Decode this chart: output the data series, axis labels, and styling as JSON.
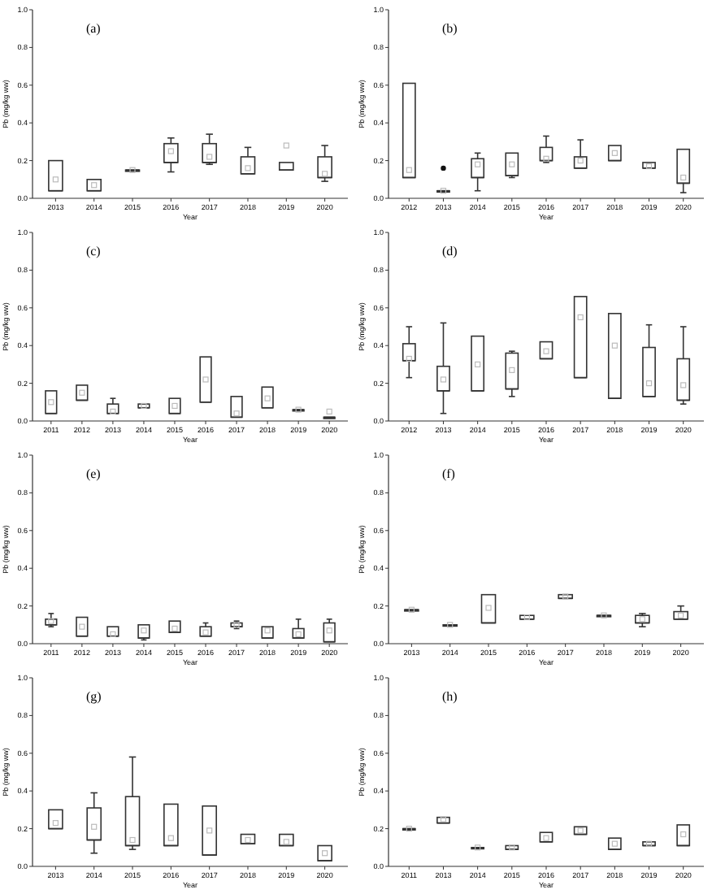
{
  "chart_data": [
    {
      "type": "box",
      "title": "(a)",
      "xlabel": "Year",
      "ylabel": "Pb (mg/kg ww)",
      "color": "#333333",
      "ylim": [
        0,
        1
      ],
      "yticks": [
        {
          "value": 0,
          "label": "0.0"
        },
        {
          "value": 0.2,
          "label": "0.2"
        },
        {
          "value": 0.4,
          "label": "0.4"
        },
        {
          "value": 0.6,
          "label": "0.6"
        },
        {
          "value": 0.8,
          "label": "0.8"
        },
        {
          "value": 1,
          "label": "1.0"
        }
      ],
      "categories": [
        "2013",
        "2014",
        "2015",
        "2016",
        "2017",
        "2018",
        "2019",
        "2020"
      ],
      "boxes": [
        {
          "low": 0.04,
          "q1": 0.04,
          "median": 0.04,
          "q3": 0.2,
          "high": 0.2,
          "mean": 0.1
        },
        {
          "low": 0.04,
          "q1": 0.04,
          "median": 0.04,
          "q3": 0.1,
          "high": 0.1,
          "mean": 0.07
        },
        {
          "low": 0.15,
          "q1": 0.15,
          "median": 0.15,
          "q3": 0.15,
          "high": 0.15,
          "mean": 0.15
        },
        {
          "low": 0.14,
          "q1": 0.19,
          "median": 0.19,
          "q3": 0.29,
          "high": 0.32,
          "mean": 0.25
        },
        {
          "low": 0.18,
          "q1": 0.19,
          "median": 0.19,
          "q3": 0.29,
          "high": 0.34,
          "mean": 0.22
        },
        {
          "low": 0.13,
          "q1": 0.13,
          "median": 0.13,
          "q3": 0.22,
          "high": 0.27,
          "mean": 0.16
        },
        {
          "low": 0.15,
          "q1": 0.15,
          "median": 0.15,
          "q3": 0.19,
          "high": 0.19,
          "mean": 0.28
        },
        {
          "low": 0.09,
          "q1": 0.11,
          "median": 0.11,
          "q3": 0.22,
          "high": 0.28,
          "mean": 0.13
        }
      ]
    },
    {
      "type": "box",
      "title": "(b)",
      "xlabel": "Year",
      "ylabel": "Pb (mg/kg ww)",
      "color": "#333333",
      "ylim": [
        0,
        1
      ],
      "yticks": [
        {
          "value": 0,
          "label": "0.0"
        },
        {
          "value": 0.2,
          "label": "0.2"
        },
        {
          "value": 0.4,
          "label": "0.4"
        },
        {
          "value": 0.6,
          "label": "0.6"
        },
        {
          "value": 0.8,
          "label": "0.8"
        },
        {
          "value": 1,
          "label": "1.0"
        }
      ],
      "categories": [
        "2012",
        "2013",
        "2014",
        "2015",
        "2016",
        "2017",
        "2018",
        "2019",
        "2020"
      ],
      "boxes": [
        {
          "low": 0.11,
          "q1": 0.11,
          "median": 0.11,
          "q3": 0.61,
          "high": 0.61,
          "mean": 0.15
        },
        {
          "low": 0.04,
          "q1": 0.04,
          "median": 0.04,
          "q3": 0.04,
          "high": 0.04,
          "mean": 0.04,
          "outliers": [
            0.16
          ]
        },
        {
          "low": 0.04,
          "q1": 0.11,
          "median": 0.11,
          "q3": 0.21,
          "high": 0.24,
          "mean": 0.18
        },
        {
          "low": 0.11,
          "q1": 0.12,
          "median": 0.12,
          "q3": 0.24,
          "high": 0.24,
          "mean": 0.18
        },
        {
          "low": 0.19,
          "q1": 0.2,
          "median": 0.2,
          "q3": 0.27,
          "high": 0.33,
          "mean": 0.21
        },
        {
          "low": 0.16,
          "q1": 0.16,
          "median": 0.16,
          "q3": 0.22,
          "high": 0.31,
          "mean": 0.2
        },
        {
          "low": 0.2,
          "q1": 0.2,
          "median": 0.2,
          "q3": 0.28,
          "high": 0.28,
          "mean": 0.24
        },
        {
          "low": 0.16,
          "q1": 0.16,
          "median": 0.16,
          "q3": 0.19,
          "high": 0.19,
          "mean": 0.17
        },
        {
          "low": 0.03,
          "q1": 0.08,
          "median": 0.08,
          "q3": 0.26,
          "high": 0.26,
          "mean": 0.11
        }
      ]
    },
    {
      "type": "box",
      "title": "(c)",
      "xlabel": "Year",
      "ylabel": "Pb (mg/kg ww)",
      "color": "#333333",
      "ylim": [
        0,
        1
      ],
      "yticks": [
        {
          "value": 0,
          "label": "0.0"
        },
        {
          "value": 0.2,
          "label": "0.2"
        },
        {
          "value": 0.4,
          "label": "0.4"
        },
        {
          "value": 0.6,
          "label": "0.6"
        },
        {
          "value": 0.8,
          "label": "0.8"
        },
        {
          "value": 1,
          "label": "1.0"
        }
      ],
      "categories": [
        "2011",
        "2012",
        "2013",
        "2014",
        "2015",
        "2016",
        "2017",
        "2018",
        "2019",
        "2020"
      ],
      "boxes": [
        {
          "low": 0.04,
          "q1": 0.04,
          "median": 0.04,
          "q3": 0.16,
          "high": 0.16,
          "mean": 0.1
        },
        {
          "low": 0.11,
          "q1": 0.11,
          "median": 0.11,
          "q3": 0.19,
          "high": 0.19,
          "mean": 0.15
        },
        {
          "low": 0.04,
          "q1": 0.04,
          "median": 0.04,
          "q3": 0.09,
          "high": 0.12,
          "mean": 0.05
        },
        {
          "low": 0.07,
          "q1": 0.07,
          "median": 0.07,
          "q3": 0.09,
          "high": 0.09,
          "mean": 0.08
        },
        {
          "low": 0.04,
          "q1": 0.04,
          "median": 0.04,
          "q3": 0.12,
          "high": 0.12,
          "mean": 0.08
        },
        {
          "low": 0.1,
          "q1": 0.1,
          "median": 0.1,
          "q3": 0.34,
          "high": 0.34,
          "mean": 0.22
        },
        {
          "low": 0.02,
          "q1": 0.02,
          "median": 0.02,
          "q3": 0.13,
          "high": 0.13,
          "mean": 0.04
        },
        {
          "low": 0.07,
          "q1": 0.07,
          "median": 0.07,
          "q3": 0.18,
          "high": 0.18,
          "mean": 0.12
        },
        {
          "low": 0.06,
          "q1": 0.06,
          "median": 0.06,
          "q3": 0.06,
          "high": 0.06,
          "mean": 0.06
        },
        {
          "low": 0.02,
          "q1": 0.02,
          "median": 0.02,
          "q3": 0.02,
          "high": 0.02,
          "mean": 0.05
        }
      ]
    },
    {
      "type": "box",
      "title": "(d)",
      "xlabel": "Year",
      "ylabel": "Pb (mg/kg ww)",
      "color": "#333333",
      "ylim": [
        0,
        1
      ],
      "yticks": [
        {
          "value": 0,
          "label": "0.0"
        },
        {
          "value": 0.2,
          "label": "0.2"
        },
        {
          "value": 0.4,
          "label": "0.4"
        },
        {
          "value": 0.6,
          "label": "0.6"
        },
        {
          "value": 0.8,
          "label": "0.8"
        },
        {
          "value": 1,
          "label": "1.0"
        }
      ],
      "categories": [
        "2012",
        "2013",
        "2014",
        "2015",
        "2016",
        "2017",
        "2018",
        "2019",
        "2020"
      ],
      "boxes": [
        {
          "low": 0.23,
          "q1": 0.32,
          "median": 0.32,
          "q3": 0.41,
          "high": 0.5,
          "mean": 0.33
        },
        {
          "low": 0.04,
          "q1": 0.16,
          "median": 0.16,
          "q3": 0.29,
          "high": 0.52,
          "mean": 0.22
        },
        {
          "low": 0.16,
          "q1": 0.16,
          "median": 0.16,
          "q3": 0.45,
          "high": 0.45,
          "mean": 0.3
        },
        {
          "low": 0.13,
          "q1": 0.17,
          "median": 0.17,
          "q3": 0.36,
          "high": 0.37,
          "mean": 0.27
        },
        {
          "low": 0.33,
          "q1": 0.33,
          "median": 0.33,
          "q3": 0.42,
          "high": 0.42,
          "mean": 0.37
        },
        {
          "low": 0.23,
          "q1": 0.23,
          "median": 0.23,
          "q3": 0.66,
          "high": 0.66,
          "mean": 0.55
        },
        {
          "low": 0.12,
          "q1": 0.12,
          "median": 0.12,
          "q3": 0.57,
          "high": 0.57,
          "mean": 0.4
        },
        {
          "low": 0.13,
          "q1": 0.13,
          "median": 0.13,
          "q3": 0.39,
          "high": 0.51,
          "mean": 0.2
        },
        {
          "low": 0.09,
          "q1": 0.11,
          "median": 0.11,
          "q3": 0.33,
          "high": 0.5,
          "mean": 0.19
        }
      ]
    },
    {
      "type": "box",
      "title": "(e)",
      "xlabel": "Year",
      "ylabel": "Pb (mg/kg ww)",
      "color": "#333333",
      "ylim": [
        0,
        1
      ],
      "yticks": [
        {
          "value": 0,
          "label": "0.0"
        },
        {
          "value": 0.2,
          "label": "0.2"
        },
        {
          "value": 0.4,
          "label": "0.4"
        },
        {
          "value": 0.6,
          "label": "0.6"
        },
        {
          "value": 0.8,
          "label": "0.8"
        },
        {
          "value": 1,
          "label": "1.0"
        }
      ],
      "categories": [
        "2011",
        "2012",
        "2013",
        "2014",
        "2015",
        "2016",
        "2017",
        "2018",
        "2019",
        "2020"
      ],
      "boxes": [
        {
          "low": 0.09,
          "q1": 0.1,
          "median": 0.1,
          "q3": 0.13,
          "high": 0.16,
          "mean": 0.12
        },
        {
          "low": 0.04,
          "q1": 0.04,
          "median": 0.04,
          "q3": 0.14,
          "high": 0.14,
          "mean": 0.09
        },
        {
          "low": 0.04,
          "q1": 0.04,
          "median": 0.04,
          "q3": 0.09,
          "high": 0.09,
          "mean": 0.05
        },
        {
          "low": 0.02,
          "q1": 0.03,
          "median": 0.03,
          "q3": 0.1,
          "high": 0.1,
          "mean": 0.07
        },
        {
          "low": 0.06,
          "q1": 0.06,
          "median": 0.06,
          "q3": 0.12,
          "high": 0.12,
          "mean": 0.08
        },
        {
          "low": 0.04,
          "q1": 0.04,
          "median": 0.04,
          "q3": 0.09,
          "high": 0.11,
          "mean": 0.06
        },
        {
          "low": 0.08,
          "q1": 0.09,
          "median": 0.09,
          "q3": 0.11,
          "high": 0.12,
          "mean": 0.1
        },
        {
          "low": 0.03,
          "q1": 0.03,
          "median": 0.03,
          "q3": 0.09,
          "high": 0.09,
          "mean": 0.07
        },
        {
          "low": 0.03,
          "q1": 0.03,
          "median": 0.03,
          "q3": 0.08,
          "high": 0.13,
          "mean": 0.05
        },
        {
          "low": 0.01,
          "q1": 0.01,
          "median": 0.01,
          "q3": 0.11,
          "high": 0.13,
          "mean": 0.07
        }
      ]
    },
    {
      "type": "box",
      "title": "(f)",
      "xlabel": "Year",
      "ylabel": "Pb (mg/kg ww)",
      "color": "#333333",
      "ylim": [
        0,
        1
      ],
      "yticks": [
        {
          "value": 0,
          "label": "0.0"
        },
        {
          "value": 0.2,
          "label": "0.2"
        },
        {
          "value": 0.4,
          "label": "0.4"
        },
        {
          "value": 0.6,
          "label": "0.6"
        },
        {
          "value": 0.8,
          "label": "0.8"
        },
        {
          "value": 1,
          "label": "1.0"
        }
      ],
      "categories": [
        "2013",
        "2014",
        "2015",
        "2016",
        "2017",
        "2018",
        "2019",
        "2020"
      ],
      "boxes": [
        {
          "low": 0.18,
          "q1": 0.18,
          "median": 0.18,
          "q3": 0.18,
          "high": 0.18,
          "mean": 0.18
        },
        {
          "low": 0.1,
          "q1": 0.1,
          "median": 0.1,
          "q3": 0.1,
          "high": 0.1,
          "mean": 0.1
        },
        {
          "low": 0.11,
          "q1": 0.11,
          "median": 0.11,
          "q3": 0.26,
          "high": 0.26,
          "mean": 0.19
        },
        {
          "low": 0.13,
          "q1": 0.13,
          "median": 0.13,
          "q3": 0.15,
          "high": 0.15,
          "mean": 0.14
        },
        {
          "low": 0.24,
          "q1": 0.24,
          "median": 0.24,
          "q3": 0.26,
          "high": 0.26,
          "mean": 0.25
        },
        {
          "low": 0.15,
          "q1": 0.15,
          "median": 0.15,
          "q3": 0.15,
          "high": 0.15,
          "mean": 0.15
        },
        {
          "low": 0.09,
          "q1": 0.11,
          "median": 0.11,
          "q3": 0.15,
          "high": 0.16,
          "mean": 0.13
        },
        {
          "low": 0.13,
          "q1": 0.13,
          "median": 0.13,
          "q3": 0.17,
          "high": 0.2,
          "mean": 0.15
        }
      ]
    },
    {
      "type": "box",
      "title": "(g)",
      "xlabel": "Year",
      "ylabel": "Pb (mg/kg ww)",
      "color": "#333333",
      "ylim": [
        0,
        1
      ],
      "yticks": [
        {
          "value": 0,
          "label": "0.0"
        },
        {
          "value": 0.2,
          "label": "0.2"
        },
        {
          "value": 0.4,
          "label": "0.4"
        },
        {
          "value": 0.6,
          "label": "0.6"
        },
        {
          "value": 0.8,
          "label": "0.8"
        },
        {
          "value": 1,
          "label": "1.0"
        }
      ],
      "categories": [
        "2013",
        "2014",
        "2015",
        "2016",
        "2017",
        "2018",
        "2019",
        "2020"
      ],
      "boxes": [
        {
          "low": 0.2,
          "q1": 0.2,
          "median": 0.2,
          "q3": 0.3,
          "high": 0.3,
          "mean": 0.23
        },
        {
          "low": 0.07,
          "q1": 0.14,
          "median": 0.14,
          "q3": 0.31,
          "high": 0.39,
          "mean": 0.21
        },
        {
          "low": 0.09,
          "q1": 0.11,
          "median": 0.11,
          "q3": 0.37,
          "high": 0.58,
          "mean": 0.14
        },
        {
          "low": 0.11,
          "q1": 0.11,
          "median": 0.11,
          "q3": 0.33,
          "high": 0.33,
          "mean": 0.15
        },
        {
          "low": 0.06,
          "q1": 0.06,
          "median": 0.06,
          "q3": 0.32,
          "high": 0.32,
          "mean": 0.19
        },
        {
          "low": 0.12,
          "q1": 0.12,
          "median": 0.12,
          "q3": 0.17,
          "high": 0.17,
          "mean": 0.14
        },
        {
          "low": 0.11,
          "q1": 0.11,
          "median": 0.11,
          "q3": 0.17,
          "high": 0.17,
          "mean": 0.13
        },
        {
          "low": 0.03,
          "q1": 0.03,
          "median": 0.03,
          "q3": 0.11,
          "high": 0.11,
          "mean": 0.07
        }
      ]
    },
    {
      "type": "box",
      "title": "(h)",
      "xlabel": "Year",
      "ylabel": "Pb (mg/kg ww)",
      "color": "#333333",
      "ylim": [
        0,
        1
      ],
      "yticks": [
        {
          "value": 0,
          "label": "0.0"
        },
        {
          "value": 0.2,
          "label": "0.2"
        },
        {
          "value": 0.4,
          "label": "0.4"
        },
        {
          "value": 0.6,
          "label": "0.6"
        },
        {
          "value": 0.8,
          "label": "0.8"
        },
        {
          "value": 1,
          "label": "1.0"
        }
      ],
      "categories": [
        "2011",
        "2013",
        "2014",
        "2015",
        "2016",
        "2017",
        "2018",
        "2019",
        "2020"
      ],
      "boxes": [
        {
          "low": 0.2,
          "q1": 0.2,
          "median": 0.2,
          "q3": 0.2,
          "high": 0.2,
          "mean": 0.2
        },
        {
          "low": 0.23,
          "q1": 0.23,
          "median": 0.23,
          "q3": 0.26,
          "high": 0.26,
          "mean": 0.25
        },
        {
          "low": 0.1,
          "q1": 0.1,
          "median": 0.1,
          "q3": 0.1,
          "high": 0.1,
          "mean": 0.1
        },
        {
          "low": 0.09,
          "q1": 0.09,
          "median": 0.09,
          "q3": 0.11,
          "high": 0.11,
          "mean": 0.1
        },
        {
          "low": 0.13,
          "q1": 0.13,
          "median": 0.13,
          "q3": 0.18,
          "high": 0.18,
          "mean": 0.15
        },
        {
          "low": 0.17,
          "q1": 0.17,
          "median": 0.17,
          "q3": 0.21,
          "high": 0.21,
          "mean": 0.19
        },
        {
          "low": 0.09,
          "q1": 0.09,
          "median": 0.09,
          "q3": 0.15,
          "high": 0.15,
          "mean": 0.12
        },
        {
          "low": 0.11,
          "q1": 0.11,
          "median": 0.11,
          "q3": 0.13,
          "high": 0.13,
          "mean": 0.12
        },
        {
          "low": 0.11,
          "q1": 0.11,
          "median": 0.11,
          "q3": 0.22,
          "high": 0.22,
          "mean": 0.17
        }
      ]
    }
  ]
}
